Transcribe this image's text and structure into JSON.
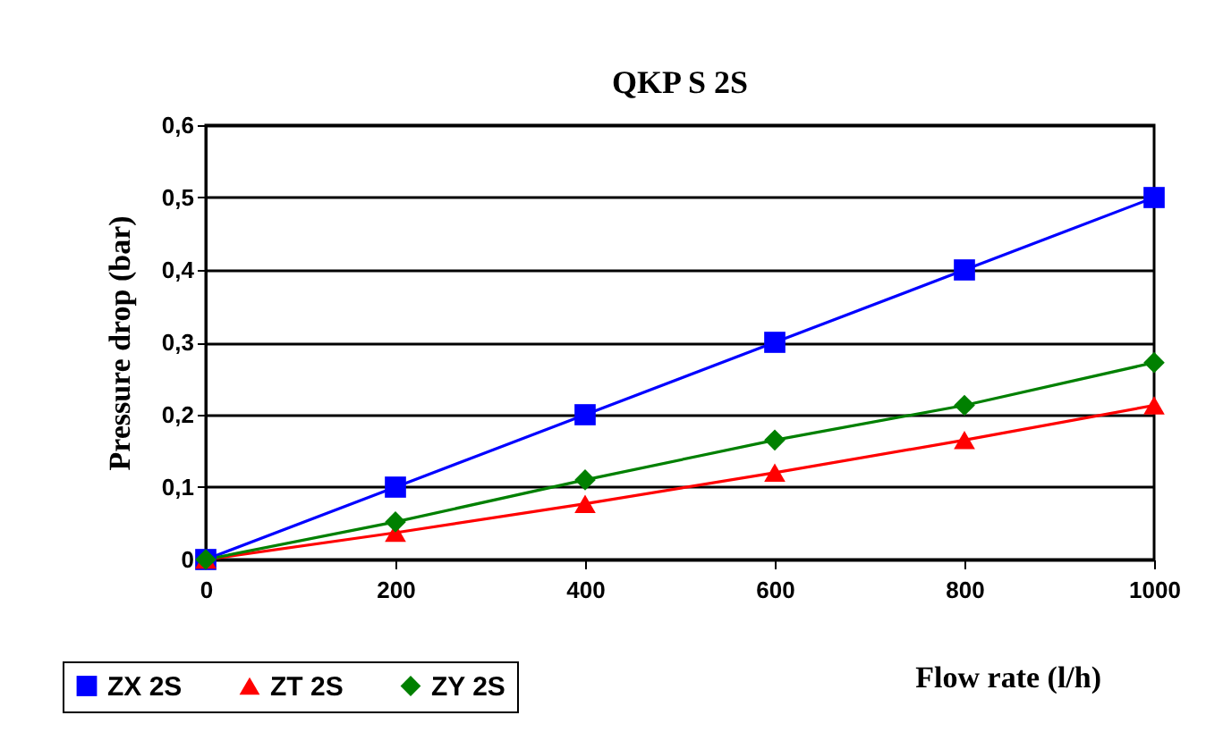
{
  "chart_data": {
    "type": "line",
    "title": "QKP S 2S",
    "xlabel": "Flow rate (l/h)",
    "ylabel": "Pressure drop (bar)",
    "x": [
      0,
      200,
      400,
      600,
      800,
      1000
    ],
    "series": [
      {
        "name": "ZX 2S",
        "color": "#0000ff",
        "marker": "square",
        "values": [
          0,
          0.1,
          0.2,
          0.3,
          0.4,
          0.5
        ]
      },
      {
        "name": "ZT 2S",
        "color": "#ff0000",
        "marker": "triangle",
        "values": [
          0,
          0.037,
          0.077,
          0.12,
          0.165,
          0.213
        ]
      },
      {
        "name": "ZY 2S",
        "color": "#008000",
        "marker": "diamond",
        "values": [
          0,
          0.052,
          0.11,
          0.165,
          0.213,
          0.272
        ]
      }
    ],
    "xlim": [
      0,
      1000
    ],
    "xticks": [
      0,
      200,
      400,
      600,
      800,
      1000
    ],
    "ylim": [
      0,
      0.6
    ],
    "yticks": [
      {
        "value": 0,
        "label": "0"
      },
      {
        "value": 0.1,
        "label": "0,1"
      },
      {
        "value": 0.2,
        "label": "0,2"
      },
      {
        "value": 0.3,
        "label": "0,3"
      },
      {
        "value": 0.4,
        "label": "0,4"
      },
      {
        "value": 0.5,
        "label": "0,5"
      },
      {
        "value": 0.6,
        "label": "0,6"
      }
    ],
    "grid": "y",
    "legend": "bottom left",
    "line_style": "solid"
  }
}
